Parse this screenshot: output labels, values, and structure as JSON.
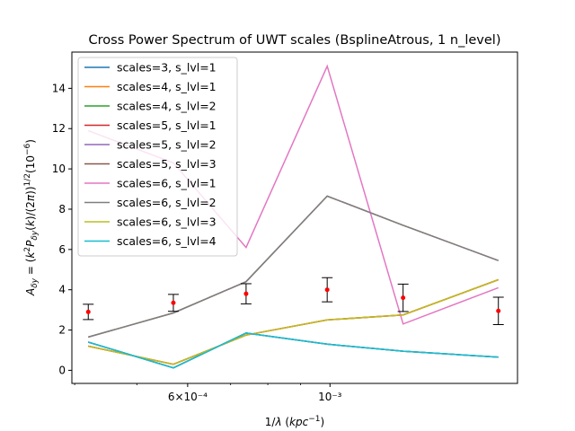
{
  "chart_data": {
    "type": "line",
    "title": "Cross Power Spectrum of UWT scales (BsplineAtrous, 1 n_level)",
    "xlabel": "1/λ (kpc⁻¹)",
    "ylabel": "A_δy = (k²P_δy(k)/(2π))^{1/2} (10⁻⁶)",
    "xscale": "log",
    "xlim": [
      0.000396,
      0.00196
    ],
    "ylim": [
      -0.65,
      15.8
    ],
    "x": [
      0.00042,
      0.00057,
      0.00074,
      0.00099,
      0.0013,
      0.00183
    ],
    "x_ticks": [
      {
        "value": 0.0006,
        "label": "6×10⁻⁴"
      },
      {
        "value": 0.001,
        "label": "10⁻³"
      }
    ],
    "y_ticks": [
      0,
      2,
      4,
      6,
      8,
      10,
      12,
      14
    ],
    "series": [
      {
        "name": "scales=3, s_lvl=1",
        "color": "#1f77b4",
        "values": [
          1.4,
          0.12,
          1.85,
          1.3,
          0.95,
          0.65
        ]
      },
      {
        "name": "scales=4, s_lvl=1",
        "color": "#ff7f0e",
        "values": [
          1.2,
          0.3,
          1.75,
          2.5,
          2.75,
          4.5
        ]
      },
      {
        "name": "scales=4, s_lvl=2",
        "color": "#2ca02c",
        "values": [
          1.4,
          0.12,
          1.85,
          1.3,
          0.95,
          0.65
        ]
      },
      {
        "name": "scales=5, s_lvl=1",
        "color": "#d62728",
        "values": [
          1.2,
          0.3,
          1.75,
          2.5,
          2.75,
          4.5
        ]
      },
      {
        "name": "scales=5, s_lvl=2",
        "color": "#9467bd",
        "values": [
          1.4,
          0.12,
          1.85,
          1.3,
          0.95,
          0.65
        ]
      },
      {
        "name": "scales=5, s_lvl=3",
        "color": "#8c564b",
        "values": [
          1.65,
          2.85,
          4.4,
          8.65,
          7.2,
          5.45
        ]
      },
      {
        "name": "scales=6, s_lvl=1",
        "color": "#e377c2",
        "values": [
          11.9,
          10.3,
          6.1,
          15.1,
          2.3,
          4.1
        ]
      },
      {
        "name": "scales=6, s_lvl=2",
        "color": "#7f7f7f",
        "values": [
          1.65,
          2.85,
          4.4,
          8.65,
          7.2,
          5.45
        ]
      },
      {
        "name": "scales=6, s_lvl=3",
        "color": "#bcbd22",
        "values": [
          1.2,
          0.3,
          1.75,
          2.5,
          2.75,
          4.5
        ]
      },
      {
        "name": "scales=6, s_lvl=4",
        "color": "#17becf",
        "values": [
          1.4,
          0.12,
          1.85,
          1.3,
          0.95,
          0.65
        ]
      }
    ],
    "errorbar_points": {
      "color": "#ff0000",
      "errcolor": "#000000",
      "values": [
        2.9,
        3.35,
        3.8,
        4.0,
        3.6,
        2.95
      ],
      "errors": [
        0.38,
        0.42,
        0.5,
        0.6,
        0.68,
        0.68
      ]
    },
    "legend": "upper-left"
  }
}
